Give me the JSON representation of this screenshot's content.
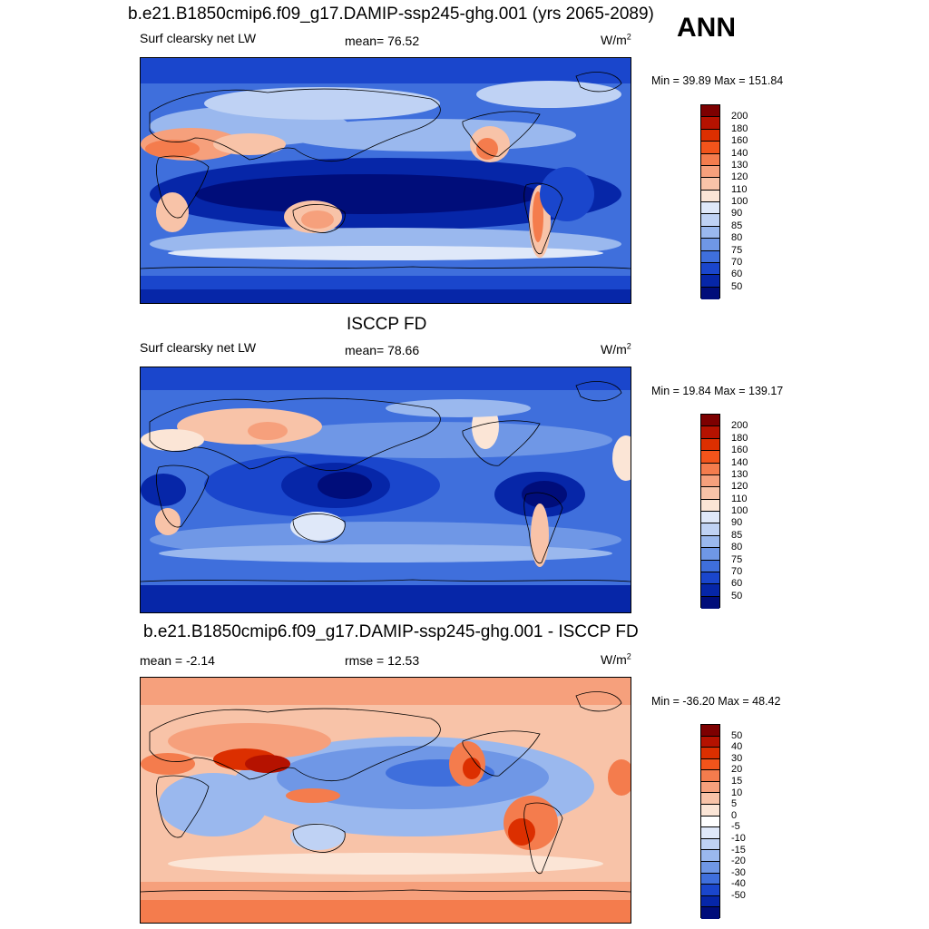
{
  "ann_label": "ANN",
  "panels": [
    {
      "title": "b.e21.B1850cmip6.f09_g17.DAMIP-ssp245-ghg.001 (yrs 2065-2089)",
      "left_label": "Surf clearsky net LW",
      "center_label": "mean=  76.52",
      "units_base": "W/m",
      "units_exp": "2",
      "minmax": "Min =  39.89 Max = 151.84",
      "colorbar_labels": [
        "200",
        "180",
        "160",
        "140",
        "130",
        "120",
        "110",
        "100",
        "90",
        "85",
        "80",
        "75",
        "70",
        "60",
        "50"
      ],
      "colors": [
        "#7d0000",
        "#b51200",
        "#dc2f00",
        "#f2541b",
        "#f47c4d",
        "#f6a07c",
        "#f8c3a8",
        "#fbe5d6",
        "#dfe8f9",
        "#bfd2f4",
        "#9ab8ee",
        "#6f97e6",
        "#3f6fdc",
        "#1a46cc",
        "#0626a8",
        "#000d7a"
      ]
    },
    {
      "title": "ISCCP FD",
      "left_label": "Surf clearsky net LW",
      "center_label": "mean=  78.66",
      "units_base": "W/m",
      "units_exp": "2",
      "minmax": "Min =  19.84 Max = 139.17",
      "colorbar_labels": [
        "200",
        "180",
        "160",
        "140",
        "130",
        "120",
        "110",
        "100",
        "90",
        "85",
        "80",
        "75",
        "70",
        "60",
        "50"
      ],
      "colors": [
        "#7d0000",
        "#b51200",
        "#dc2f00",
        "#f2541b",
        "#f47c4d",
        "#f6a07c",
        "#f8c3a8",
        "#fbe5d6",
        "#dfe8f9",
        "#bfd2f4",
        "#9ab8ee",
        "#6f97e6",
        "#3f6fdc",
        "#1a46cc",
        "#0626a8",
        "#000d7a"
      ]
    },
    {
      "title": "b.e21.B1850cmip6.f09_g17.DAMIP-ssp245-ghg.001 - ISCCP FD",
      "left_label": "mean =  -2.14",
      "center_label": "rmse =  12.53",
      "units_base": "W/m",
      "units_exp": "2",
      "minmax": "Min = -36.20 Max =  48.42",
      "colorbar_labels": [
        "50",
        "40",
        "30",
        "20",
        "15",
        "10",
        "5",
        "0",
        "-5",
        "-10",
        "-15",
        "-20",
        "-30",
        "-40",
        "-50"
      ],
      "colors": [
        "#7d0000",
        "#b51200",
        "#dc2f00",
        "#f2541b",
        "#f47c4d",
        "#f6a07c",
        "#f8c3a8",
        "#fbe5d6",
        "#ffffff",
        "#dfe8f9",
        "#bfd2f4",
        "#9ab8ee",
        "#6f97e6",
        "#3f6fdc",
        "#1a46cc",
        "#0626a8",
        "#000d7a"
      ]
    }
  ]
}
